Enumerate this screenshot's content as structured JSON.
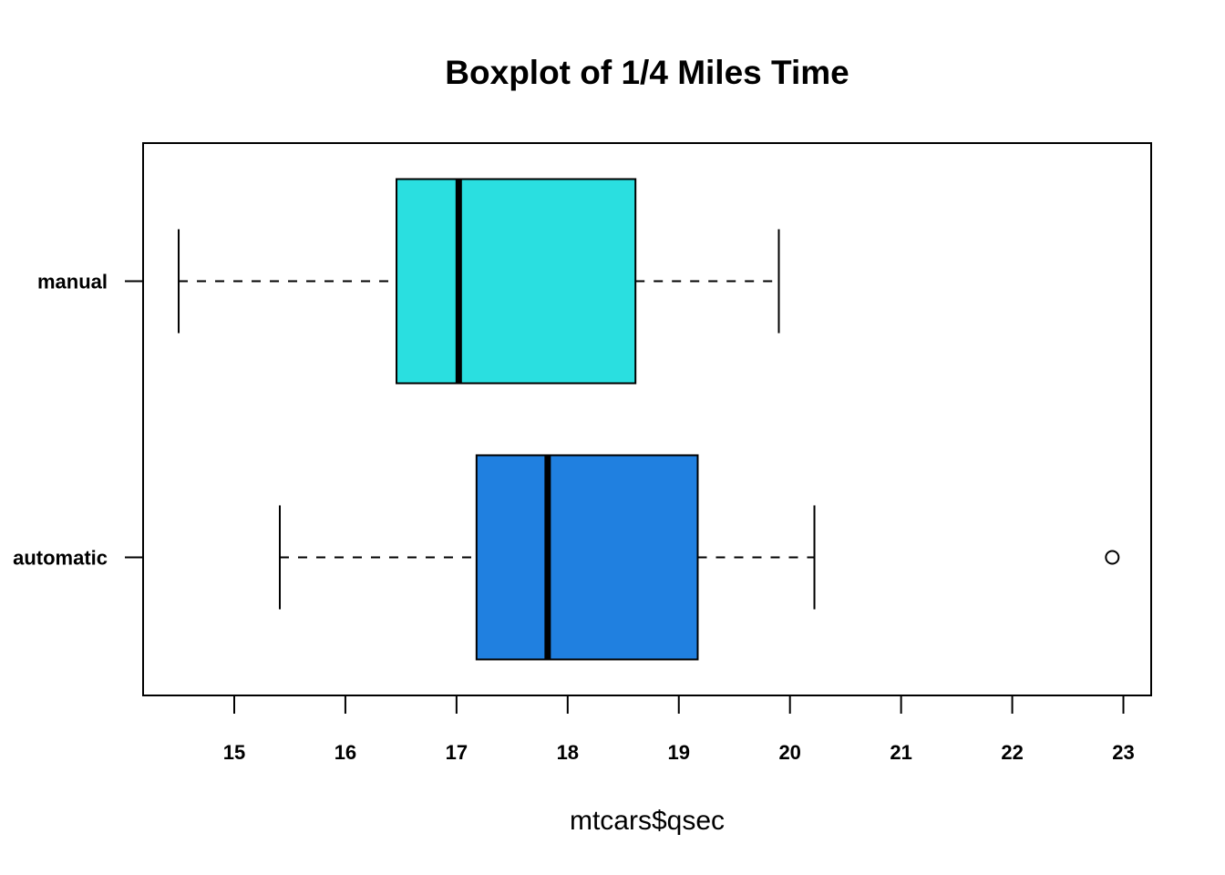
{
  "chart_data": {
    "type": "boxplot",
    "orientation": "horizontal",
    "title": "Boxplot of 1/4 Miles Time",
    "xlabel": "mtcars$qsec",
    "ylabel": "",
    "xlim": [
      14.18,
      23.25
    ],
    "x_ticks": [
      15,
      16,
      17,
      18,
      19,
      20,
      21,
      22,
      23
    ],
    "x_tick_labels": [
      "15",
      "16",
      "17",
      "18",
      "19",
      "20",
      "21",
      "22",
      "23"
    ],
    "categories": [
      "automatic",
      "manual"
    ],
    "series": [
      {
        "category": "automatic",
        "color": "#2080E0",
        "whisker_low": 15.41,
        "q1": 17.18,
        "median": 17.82,
        "q3": 19.17,
        "whisker_high": 20.22,
        "outliers": [
          22.9
        ]
      },
      {
        "category": "manual",
        "color": "#2ADFE0",
        "whisker_low": 14.5,
        "q1": 16.46,
        "median": 17.02,
        "q3": 18.61,
        "whisker_high": 19.9,
        "outliers": []
      }
    ],
    "grid": false,
    "legend": "none"
  }
}
